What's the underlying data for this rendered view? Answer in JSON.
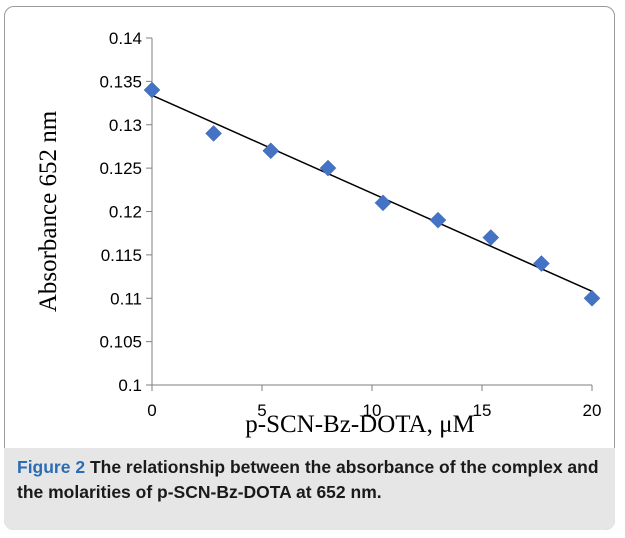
{
  "figure": {
    "label": "Figure 2",
    "text": "The relationship between the absorbance of the complex and the molarities of p-SCN-Bz-DOTA at 652 nm."
  },
  "chart_data": {
    "type": "scatter",
    "xlabel": "p-SCN-Bz-DOTA, μM",
    "ylabel": "Absorbance 652 nm",
    "xlim": [
      0,
      20
    ],
    "ylim": [
      0.1,
      0.14
    ],
    "x_ticks": [
      "0",
      "5",
      "10",
      "15",
      "20"
    ],
    "y_ticks": [
      "0.1",
      "0.105",
      "0.11",
      "0.115",
      "0.12",
      "0.125",
      "0.13",
      "0.135",
      "0.14"
    ],
    "grid": false,
    "legend": false,
    "marker": "diamond",
    "marker_color": "#4472c4",
    "x": [
      0,
      2.8,
      5.4,
      8.0,
      10.5,
      13.0,
      15.4,
      17.7,
      20.0
    ],
    "y": [
      0.134,
      0.129,
      0.127,
      0.125,
      0.121,
      0.119,
      0.117,
      0.114,
      0.11
    ],
    "trendline": {
      "type": "linear",
      "x": [
        0,
        20
      ],
      "y": [
        0.1334,
        0.1108
      ]
    }
  }
}
